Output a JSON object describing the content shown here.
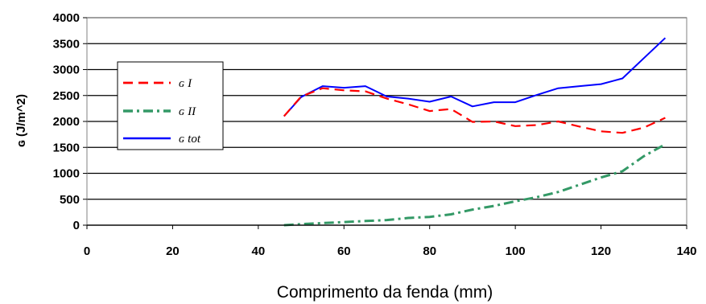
{
  "chart_data": {
    "type": "line",
    "xlabel": "Comprimento da fenda (mm)",
    "ylabel": "ɢ (J/m^2)",
    "xlim": [
      0,
      140
    ],
    "ylim": [
      0,
      4000
    ],
    "xticks": [
      0,
      20,
      40,
      60,
      80,
      100,
      120,
      140
    ],
    "yticks": [
      0,
      500,
      1000,
      1500,
      2000,
      2500,
      3000,
      3500,
      4000
    ],
    "grid": "horizontal",
    "legend_position": "left",
    "series": [
      {
        "name": "ɢ I",
        "color": "#ff0000",
        "dash": "dashed",
        "x": [
          46,
          50,
          55,
          60,
          65,
          70,
          75,
          80,
          85,
          90,
          95,
          100,
          105,
          110,
          115,
          120,
          125,
          130,
          135
        ],
        "y": [
          2100,
          2480,
          2640,
          2600,
          2580,
          2440,
          2330,
          2200,
          2240,
          1990,
          2000,
          1910,
          1930,
          2000,
          1900,
          1810,
          1780,
          1880,
          2070
        ]
      },
      {
        "name": "ɢ II",
        "color": "#339966",
        "dash": "dash-dot",
        "x": [
          46,
          50,
          55,
          60,
          65,
          70,
          75,
          80,
          85,
          90,
          95,
          100,
          105,
          110,
          115,
          120,
          125,
          130,
          135
        ],
        "y": [
          0,
          20,
          40,
          60,
          80,
          100,
          140,
          160,
          210,
          300,
          370,
          460,
          540,
          640,
          780,
          920,
          1040,
          1330,
          1560
        ]
      },
      {
        "name": "ɢ tot",
        "color": "#0000ff",
        "dash": "solid",
        "x": [
          46,
          50,
          55,
          60,
          65,
          70,
          75,
          80,
          85,
          90,
          95,
          100,
          105,
          110,
          115,
          120,
          125,
          130,
          135
        ],
        "y": [
          2100,
          2470,
          2680,
          2650,
          2680,
          2480,
          2440,
          2380,
          2480,
          2290,
          2370,
          2370,
          2510,
          2640,
          2680,
          2720,
          2830,
          3220,
          3610
        ]
      }
    ]
  }
}
